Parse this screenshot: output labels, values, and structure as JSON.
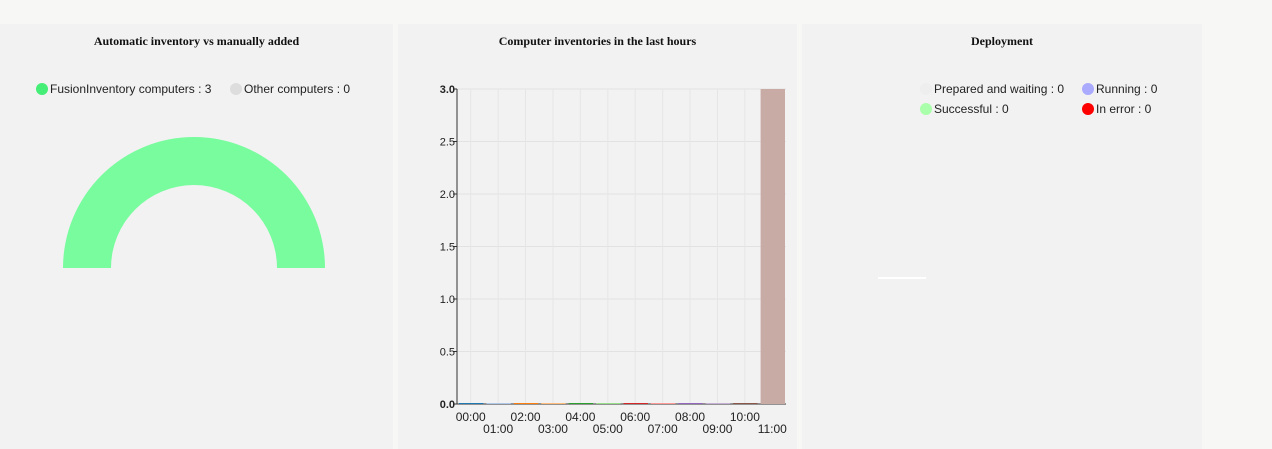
{
  "panels": {
    "inventory": {
      "title": "Automatic inventory vs manually added",
      "legend": [
        {
          "label": "FusionInventory computers : 3",
          "color": "#44ee77"
        },
        {
          "label": "Other computers : 0",
          "color": "#dddddd"
        }
      ],
      "gauge_color": "#78fc9e"
    },
    "hours": {
      "title": "Computer inventories in the last hours"
    },
    "deployment": {
      "title": "Deployment",
      "legend": [
        {
          "label": "Prepared and waiting : 0",
          "color": "#eeeeee"
        },
        {
          "label": "Running : 0",
          "color": "#aaaaff"
        },
        {
          "label": "Successful : 0",
          "color": "#aaffaa"
        },
        {
          "label": "In error : 0",
          "color": "#ff0000"
        }
      ]
    }
  },
  "chart_data": [
    {
      "type": "pie",
      "title": "Automatic inventory vs manually added",
      "labels": [
        "FusionInventory computers",
        "Other computers"
      ],
      "values": [
        3,
        0
      ],
      "colors": [
        "#78fc9e",
        "#dddddd"
      ],
      "half_donut": true
    },
    {
      "type": "bar",
      "title": "Computer inventories in the last hours",
      "categories": [
        "00:00",
        "01:00",
        "02:00",
        "03:00",
        "04:00",
        "05:00",
        "06:00",
        "07:00",
        "08:00",
        "09:00",
        "10:00",
        "11:00"
      ],
      "values": [
        0,
        0,
        0,
        0,
        0,
        0,
        0,
        0,
        0,
        0,
        0,
        3
      ],
      "colors": [
        "#1f77b4",
        "#aec7e8",
        "#ff7f0e",
        "#ffbb78",
        "#2ca02c",
        "#98df8a",
        "#d62728",
        "#ff9896",
        "#9467bd",
        "#c5b0d5",
        "#8c564b",
        "#c9aba6"
      ],
      "ylim": [
        0,
        3.0
      ],
      "yticks": [
        "0.0",
        "0.5",
        "1.0",
        "1.5",
        "2.0",
        "2.5",
        "3.0"
      ],
      "grid": true
    },
    {
      "type": "pie",
      "title": "Deployment",
      "labels": [
        "Prepared and waiting",
        "Running",
        "Successful",
        "In error"
      ],
      "values": [
        0,
        0,
        0,
        0
      ]
    }
  ]
}
